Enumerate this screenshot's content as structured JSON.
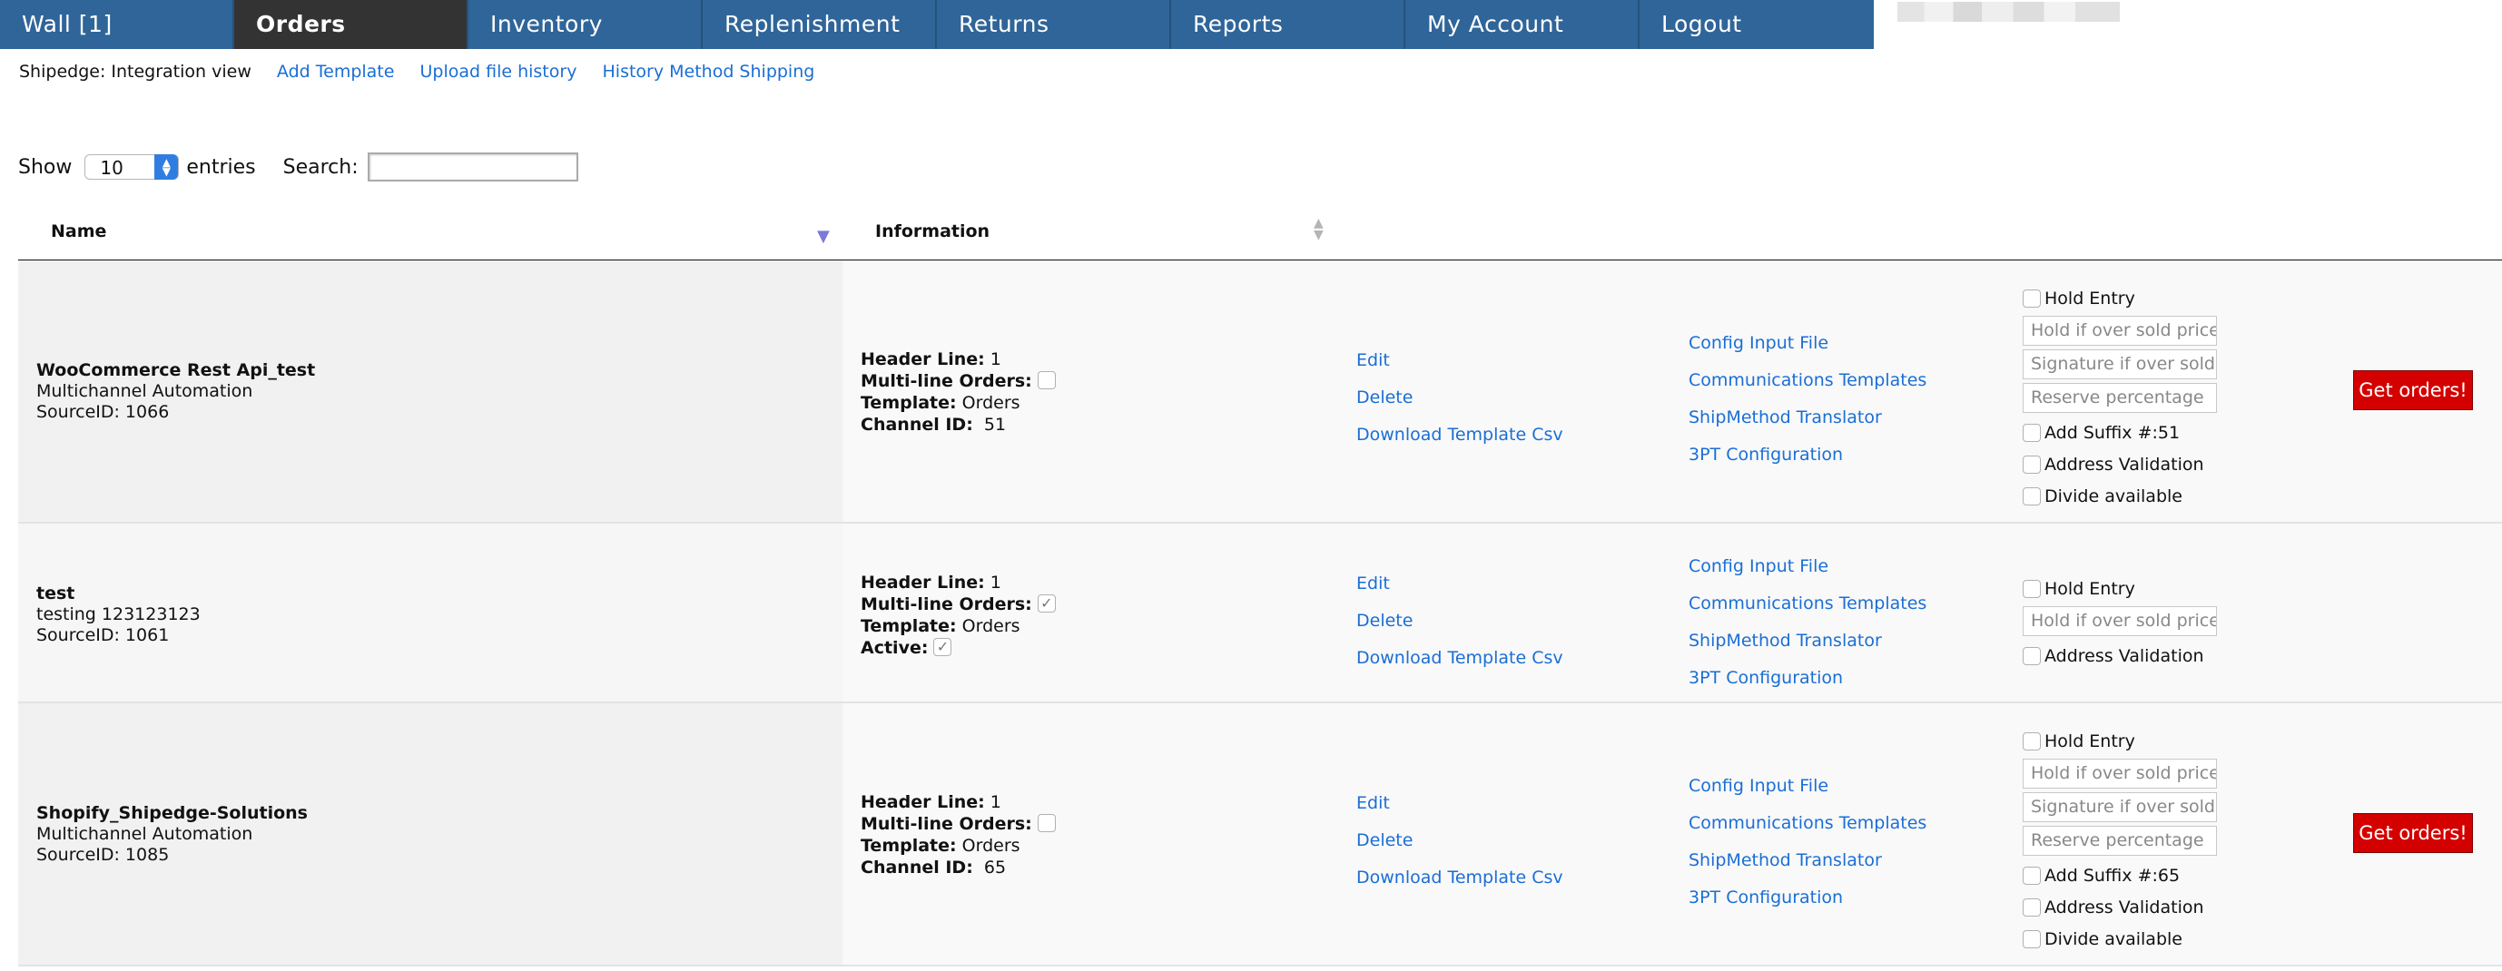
{
  "nav": {
    "tabs": [
      "Wall [1]",
      "Orders",
      "Inventory",
      "Replenishment",
      "Returns",
      "Reports",
      "My Account",
      "Logout"
    ],
    "active": "Orders"
  },
  "subnav": {
    "label": "Shipedge: Integration view",
    "links": [
      "Add Template",
      "Upload file history",
      "History Method Shipping"
    ]
  },
  "controls": {
    "show_label": "Show",
    "entries_value": "10",
    "entries_label": "entries",
    "search_label": "Search:",
    "search_value": ""
  },
  "table": {
    "columns": [
      "Name",
      "Information"
    ],
    "rows": [
      {
        "name": "WooCommerce Rest Api_test",
        "sub": "Multichannel Automation",
        "source": "SourceID: 1066",
        "info": {
          "header_label": "Header Line:",
          "header_value": "1",
          "multiline_label": "Multi-line Orders:",
          "multiline_checked": false,
          "template_label": "Template:",
          "template_value": "Orders",
          "extra_label": "Channel ID:",
          "extra_value": "51"
        },
        "actions": [
          "Edit",
          "Delete",
          "Download Template Csv"
        ],
        "links": [
          "Config Input File",
          "Communications Templates",
          "ShipMethod Translator",
          "3PT Configuration"
        ],
        "opts": {
          "hold_entry": "Hold Entry",
          "hold_placeholder": "Hold if over sold price",
          "signature_placeholder": "Signature if over sold price",
          "reserve_placeholder": "Reserve percentage",
          "suffix": "Add Suffix #:51",
          "address": "Address Validation",
          "divide": "Divide available"
        },
        "button": "Get orders!"
      },
      {
        "name": "test",
        "sub": "testing 123123123",
        "source": "SourceID: 1061",
        "info": {
          "header_label": "Header Line:",
          "header_value": "1",
          "multiline_label": "Multi-line Orders:",
          "multiline_checked": true,
          "template_label": "Template:",
          "template_value": "Orders",
          "extra_label": "Active:",
          "extra_value": ""
        },
        "actions": [
          "Edit",
          "Delete",
          "Download Template Csv"
        ],
        "links": [
          "Config Input File",
          "Communications Templates",
          "ShipMethod Translator",
          "3PT Configuration"
        ],
        "opts": {
          "hold_entry": "Hold Entry",
          "hold_placeholder": "Hold if over sold price",
          "address": "Address Validation"
        }
      },
      {
        "name": "Shopify_Shipedge-Solutions",
        "sub": "Multichannel Automation",
        "source": "SourceID: 1085",
        "info": {
          "header_label": "Header Line:",
          "header_value": "1",
          "multiline_label": "Multi-line Orders:",
          "multiline_checked": false,
          "template_label": "Template:",
          "template_value": "Orders",
          "extra_label": "Channel ID:",
          "extra_value": "65"
        },
        "actions": [
          "Edit",
          "Delete",
          "Download Template Csv"
        ],
        "links": [
          "Config Input File",
          "Communications Templates",
          "ShipMethod Translator",
          "3PT Configuration"
        ],
        "opts": {
          "hold_entry": "Hold Entry",
          "hold_placeholder": "Hold if over sold price",
          "signature_placeholder": "Signature if over sold price",
          "reserve_placeholder": "Reserve percentage",
          "suffix": "Add Suffix #:65",
          "address": "Address Validation",
          "divide": "Divide available"
        },
        "button": "Get orders!"
      }
    ]
  },
  "colors": {
    "nav_bg": "#2f6599",
    "nav_active": "#333333",
    "link": "#1a6ed6",
    "button": "#d40000"
  }
}
